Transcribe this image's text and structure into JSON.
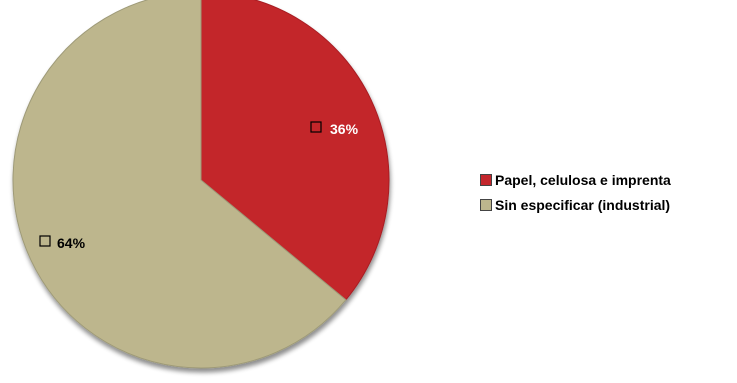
{
  "chart_data": {
    "type": "pie",
    "categories": [
      "Papel, celulosa e imprenta",
      "Sin especificar  (industrial)"
    ],
    "values": [
      36,
      64
    ],
    "data_labels": [
      "36%",
      "64%"
    ],
    "colors": [
      "#c3262c",
      "#bdb68d"
    ],
    "edge_color": "#9e9a78",
    "label_colors": [
      "#ffffff",
      "#000000"
    ],
    "start_angle_deg": 0,
    "direction": "clockwise",
    "legend_position": "right",
    "title": ""
  }
}
